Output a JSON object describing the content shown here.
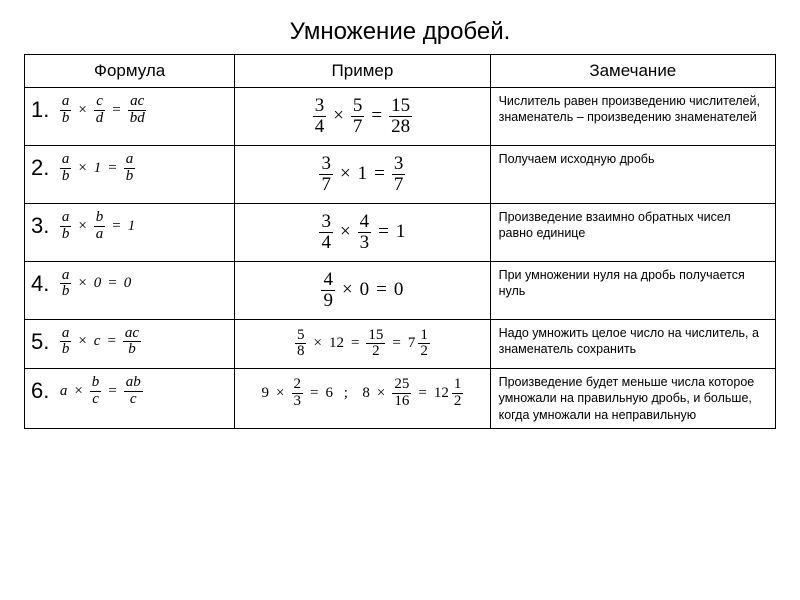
{
  "title": "Умножение дробей.",
  "headers": {
    "formula": "Формула",
    "example": "Пример",
    "note": "Замечание"
  },
  "rows": [
    {
      "n": "1.",
      "formula": {
        "type": "frac_times_frac_eq_frac",
        "a": "a",
        "b": "b",
        "c": "c",
        "d": "d",
        "rn": "ac",
        "rd": "bd"
      },
      "example": {
        "type": "frac_times_frac_eq_frac",
        "a": "3",
        "b": "4",
        "c": "5",
        "d": "7",
        "rn": "15",
        "rd": "28"
      },
      "note": "Числитель равен произведению числителей, знаменатель – произведению знаменателей"
    },
    {
      "n": "2.",
      "formula": {
        "type": "frac_times_scalar_eq_frac",
        "a": "a",
        "b": "b",
        "s": "1",
        "rn": "a",
        "rd": "b"
      },
      "example": {
        "type": "frac_times_scalar_eq_frac",
        "a": "3",
        "b": "7",
        "s": "1",
        "rn": "3",
        "rd": "7"
      },
      "note": "Получаем исходную дробь"
    },
    {
      "n": "3.",
      "formula": {
        "type": "frac_times_frac_eq_scalar",
        "a": "a",
        "b": "b",
        "c": "b",
        "d": "a",
        "r": "1"
      },
      "example": {
        "type": "frac_times_frac_eq_scalar",
        "a": "3",
        "b": "4",
        "c": "4",
        "d": "3",
        "r": "1"
      },
      "note": "Произведение взаимно обратных чисел равно единице"
    },
    {
      "n": "4.",
      "formula": {
        "type": "frac_times_scalar_eq_scalar",
        "a": "a",
        "b": "b",
        "s": "0",
        "r": "0"
      },
      "example": {
        "type": "frac_times_scalar_eq_scalar",
        "a": "4",
        "b": "9",
        "s": "0",
        "r": "0"
      },
      "note": "При умножении нуля на дробь получается нуль"
    },
    {
      "n": "5.",
      "formula": {
        "type": "frac_times_scalar_eq_frac",
        "a": "a",
        "b": "b",
        "s": "c",
        "rn": "ac",
        "rd": "b"
      },
      "example": {
        "type": "row5_example",
        "a": "5",
        "b": "8",
        "s": "12",
        "mn": "15",
        "md": "2",
        "w": "7",
        "fn": "1",
        "fd": "2"
      },
      "note": "Надо умножить целое число на числитель, а знаменатель сохранить"
    },
    {
      "n": "6.",
      "formula": {
        "type": "scalar_times_frac_eq_frac",
        "s": "a",
        "a": "b",
        "b": "c",
        "rn": "ab",
        "rd": "c"
      },
      "example": {
        "type": "row6_example",
        "p1": {
          "s": "9",
          "a": "2",
          "b": "3",
          "r": "6"
        },
        "p2": {
          "s": "8",
          "a": "25",
          "b": "16",
          "w": "12",
          "fn": "1",
          "fd": "2"
        }
      },
      "note": "Произведение будет меньше числа которое умножали на правильную дробь, и больше, когда умножали на неправильную"
    }
  ],
  "style": {
    "font_family": "Arial",
    "math_family": "Times New Roman",
    "border_color": "#000000",
    "background": "#ffffff",
    "title_fontsize": 24,
    "header_fontsize": 17,
    "rownum_fontsize": 22,
    "note_fontsize": 12.5,
    "col_widths_pct": [
      28,
      34,
      38
    ]
  }
}
